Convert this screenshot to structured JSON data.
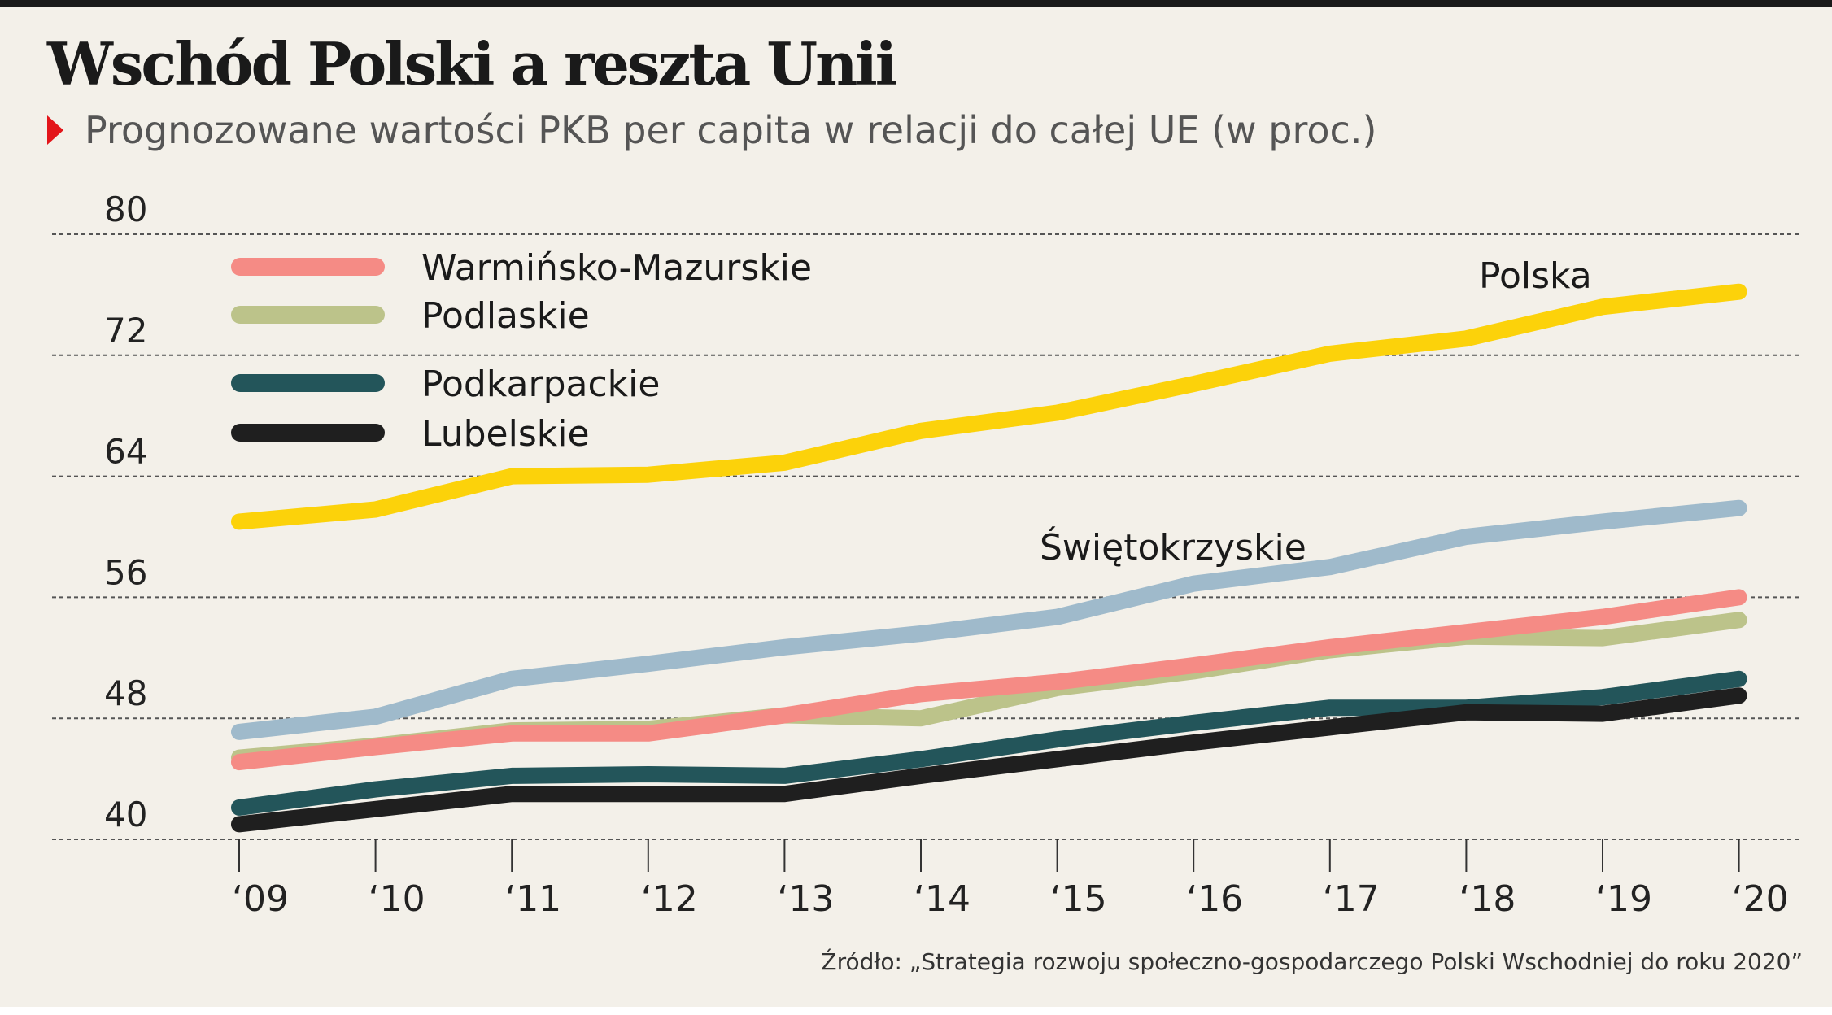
{
  "header": {
    "title": "Wschód Polski a reszta Unii",
    "subtitle": "Prognozowane wartości PKB per capita w relacji do całej UE (w proc.)"
  },
  "footer": {
    "source": "Źródło: „Strategia rozwoju społeczno-gospodarczego Polski Wschodniej do roku 2020”"
  },
  "colors": {
    "background": "#f3f0e9",
    "accent_red": "#e3151a",
    "Polska": "#fcd20a",
    "Świętokrzyskie": "#9fbacb",
    "Warmińsko-Mazurskie": "#f58b85",
    "Podlaskie": "#bcc38a",
    "Podkarpackie": "#23555a",
    "Lubelskie": "#1f1f1f"
  },
  "chart_data": {
    "type": "line",
    "title": "Wschód Polski a reszta Unii",
    "subtitle": "Prognozowane wartości PKB per capita w relacji do całej UE (w proc.)",
    "xlabel": "",
    "ylabel": "",
    "categories": [
      "‘09",
      "‘10",
      "‘11",
      "‘12",
      "‘13",
      "‘14",
      "‘15",
      "‘16",
      "‘17",
      "‘18",
      "‘19",
      "‘20"
    ],
    "yticks": [
      "40",
      "48",
      "56",
      "64",
      "72",
      "80"
    ],
    "ylim": [
      40,
      80
    ],
    "grid": "horizontal dashed",
    "legend": {
      "placement": "top-left",
      "entries": [
        "Warmińsko-Mazurskie",
        "Podlaskie",
        "Podkarpackie",
        "Lubelskie"
      ]
    },
    "series": [
      {
        "name": "Polska",
        "label": "Polska",
        "color": "#fcd20a",
        "values": [
          61.0,
          61.8,
          64.0,
          64.1,
          64.9,
          67.0,
          68.2,
          70.1,
          72.1,
          73.1,
          75.2,
          76.2
        ]
      },
      {
        "name": "Świętokrzyskie",
        "label": "Świętokrzyskie",
        "color": "#9fbacb",
        "values": [
          47.1,
          48.1,
          50.6,
          51.6,
          52.7,
          53.6,
          54.7,
          56.9,
          58.0,
          60.0,
          61.0,
          61.9
        ]
      },
      {
        "name": "Warmińsko-Mazurskie",
        "color": "#f58b85",
        "values": [
          45.1,
          46.1,
          47.0,
          47.0,
          48.2,
          49.6,
          50.4,
          51.5,
          52.7,
          53.7,
          54.7,
          56.0
        ]
      },
      {
        "name": "Podlaskie",
        "color": "#bcc38a",
        "values": [
          45.4,
          46.2,
          47.2,
          47.3,
          48.2,
          48.0,
          50.0,
          51.1,
          52.5,
          53.4,
          53.3,
          54.5
        ]
      },
      {
        "name": "Podkarpackie",
        "color": "#23555a",
        "values": [
          42.1,
          43.3,
          44.2,
          44.3,
          44.2,
          45.3,
          46.6,
          47.7,
          48.7,
          48.7,
          49.4,
          50.6
        ]
      },
      {
        "name": "Lubelskie",
        "color": "#1f1f1f",
        "values": [
          41.0,
          42.0,
          43.0,
          43.0,
          43.0,
          44.2,
          45.3,
          46.4,
          47.4,
          48.4,
          48.3,
          49.5
        ]
      }
    ]
  }
}
